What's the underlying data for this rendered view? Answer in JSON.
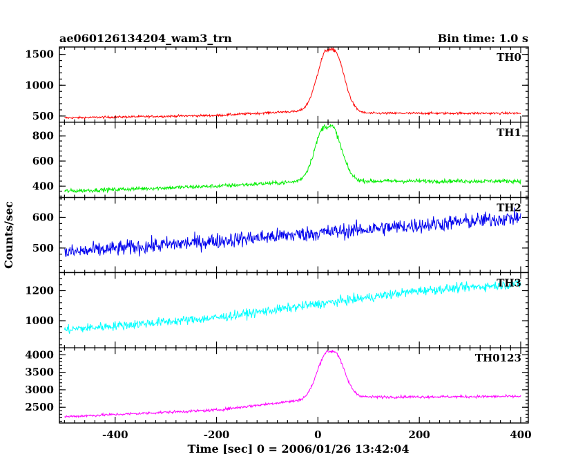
{
  "header": {
    "title": "ae060126134204_wam3_trn",
    "bin_time": "Bin time: 1.0 s"
  },
  "chart_data": {
    "type": "line",
    "title": "ae060126134204_wam3_trn",
    "xlabel": "Time [sec] 0 = 2006/01/26 13:42:04",
    "ylabel": "Counts/sec",
    "xlim": [
      -510,
      415
    ],
    "x_ticks": [
      -400,
      -200,
      0,
      200,
      400
    ],
    "x_step": 1,
    "grid": false,
    "panels": [
      {
        "name": "TH0",
        "color": "#ff0000",
        "ylim": [
          400,
          1620
        ],
        "y_ticks": [
          500,
          1000,
          1500
        ],
        "pre_baseline": [
          [
            -500,
            470
          ],
          [
            -200,
            510
          ],
          [
            -60,
            570
          ]
        ],
        "post_baseline": [
          [
            70,
            545
          ],
          [
            400,
            545
          ]
        ],
        "peak": {
          "center": 25,
          "sigma": 20,
          "amplitude": 1020,
          "flat_half_width": 6
        },
        "noise": 18
      },
      {
        "name": "TH1",
        "color": "#00ee00",
        "ylim": [
          310,
          910
        ],
        "y_ticks": [
          400,
          600,
          800
        ],
        "pre_baseline": [
          [
            -500,
            360
          ],
          [
            -200,
            400
          ],
          [
            -60,
            430
          ]
        ],
        "post_baseline": [
          [
            70,
            440
          ],
          [
            400,
            440
          ]
        ],
        "peak": {
          "center": 20,
          "sigma": 20,
          "amplitude": 440,
          "flat_half_width": 6
        },
        "noise": 16
      },
      {
        "name": "TH2",
        "color": "#0000ee",
        "ylim": [
          420,
          665
        ],
        "y_ticks": [
          500,
          600
        ],
        "pre_baseline": [
          [
            -500,
            485
          ],
          [
            400,
            600
          ]
        ],
        "post_baseline": [],
        "peak": null,
        "noise": 25
      },
      {
        "name": "TH3",
        "color": "#00ffff",
        "ylim": [
          820,
          1320
        ],
        "y_ticks": [
          1000,
          1200
        ],
        "pre_baseline": [
          [
            -500,
            940
          ],
          [
            -200,
            1020
          ],
          [
            0,
            1110
          ],
          [
            200,
            1200
          ],
          [
            400,
            1245
          ]
        ],
        "post_baseline": [],
        "peak": null,
        "noise": 30
      },
      {
        "name": "TH0123",
        "color": "#ff00ff",
        "ylim": [
          2050,
          4200
        ],
        "y_ticks": [
          2500,
          3000,
          3500,
          4000
        ],
        "pre_baseline": [
          [
            -500,
            2230
          ],
          [
            -200,
            2420
          ],
          [
            -60,
            2660
          ]
        ],
        "post_baseline": [
          [
            70,
            2790
          ],
          [
            400,
            2810
          ]
        ],
        "peak": {
          "center": 25,
          "sigma": 20,
          "amplitude": 1350,
          "flat_half_width": 6
        },
        "noise": 38
      }
    ]
  }
}
